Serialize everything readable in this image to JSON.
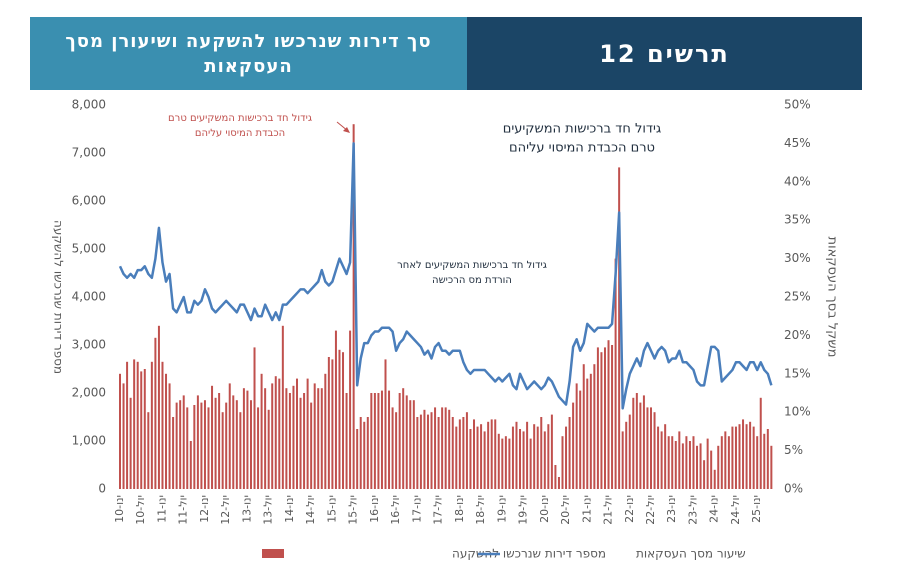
{
  "chart_data": {
    "type": "bar-line",
    "title": "סך דירות שנרכשו להשקעה ושיעורן מסך העסקאות",
    "chart_label": "תרשים 12",
    "y_label": "מספר דירות שנרכשו להשקעה",
    "y2_label": "משקל בסך העסקאות",
    "categories": [
      "ינו-10",
      null,
      null,
      null,
      null,
      null,
      "יול-10",
      null,
      null,
      null,
      null,
      null,
      "ינו-11",
      null,
      null,
      null,
      null,
      null,
      "יול-11",
      null,
      null,
      null,
      null,
      null,
      "ינו-12",
      null,
      null,
      null,
      null,
      null,
      "יול-12",
      null,
      null,
      null,
      null,
      null,
      "ינו-13",
      null,
      null,
      null,
      null,
      null,
      "יול-13",
      null,
      null,
      null,
      null,
      null,
      "ינו-14",
      null,
      null,
      null,
      null,
      null,
      "יול-14",
      null,
      null,
      null,
      null,
      null,
      "ינו-15",
      null,
      null,
      null,
      null,
      null,
      "יול-15",
      null,
      null,
      null,
      null,
      null,
      "ינו-16",
      null,
      null,
      null,
      null,
      null,
      "יול-16",
      null,
      null,
      null,
      null,
      null,
      "ינו-17",
      null,
      null,
      null,
      null,
      null,
      "יול-17",
      null,
      null,
      null,
      null,
      null,
      "ינו-18",
      null,
      null,
      null,
      null,
      null,
      "יול-18",
      null,
      null,
      null,
      null,
      null,
      "ינו-19",
      null,
      null,
      null,
      null,
      null,
      "יול-19",
      null,
      null,
      null,
      null,
      null,
      "ינו-20",
      null,
      null,
      null,
      null,
      null,
      "יול-20",
      null,
      null,
      null,
      null,
      null,
      "ינו-21",
      null,
      null,
      null,
      null,
      null,
      "יול-21",
      null,
      null,
      null,
      null,
      null,
      "ינו-22",
      null,
      null,
      null,
      null,
      null,
      "יול-22",
      null,
      null,
      null,
      null,
      null,
      "ינו-23",
      null,
      null,
      null,
      null,
      null,
      "יול-23",
      null,
      null,
      null,
      null,
      null,
      "ינו-24",
      null,
      null,
      null,
      null,
      null,
      "יול-24",
      null,
      null,
      null,
      null,
      null,
      "ינו-25",
      null,
      null,
      null,
      null
    ],
    "series": [
      {
        "name": "מספר דירות שנרכשו להשקעה",
        "type": "bar",
        "color": "#c0504d",
        "values": [
          2400,
          2200,
          2650,
          1900,
          2700,
          2650,
          2450,
          2500,
          1600,
          2650,
          3150,
          3400,
          2650,
          2400,
          2200,
          1500,
          1800,
          1850,
          1950,
          1700,
          1000,
          1750,
          1950,
          1800,
          1850,
          1700,
          2150,
          1900,
          2000,
          1600,
          1800,
          2200,
          1950,
          1850,
          1600,
          2100,
          2050,
          1850,
          2950,
          1700,
          2400,
          2100,
          1650,
          2200,
          2350,
          2300,
          3400,
          2100,
          2000,
          2150,
          2300,
          1900,
          2000,
          2300,
          1800,
          2200,
          2100,
          2100,
          2400,
          2750,
          2700,
          3300,
          2900,
          2850,
          2000,
          3300,
          7600,
          1250,
          1500,
          1400,
          1500,
          2000,
          2000,
          2000,
          2050,
          2700,
          2050,
          1700,
          1600,
          2000,
          2100,
          1950,
          1850,
          1850,
          1500,
          1550,
          1650,
          1550,
          1600,
          1700,
          1500,
          1700,
          1700,
          1650,
          1500,
          1300,
          1450,
          1500,
          1600,
          1250,
          1450,
          1300,
          1350,
          1200,
          1400,
          1450,
          1450,
          1150,
          1050,
          1100,
          1050,
          1300,
          1400,
          1250,
          1200,
          1400,
          1050,
          1350,
          1300,
          1500,
          1200,
          1350,
          1550,
          500,
          250,
          1100,
          1300,
          1500,
          1800,
          2200,
          2050,
          2600,
          2300,
          2400,
          2600,
          2950,
          2850,
          2950,
          3100,
          3000,
          4800,
          6700,
          1200,
          1400,
          1550,
          1900,
          2000,
          1800,
          1950,
          1700,
          1700,
          1600,
          1300,
          1200,
          1350,
          1100,
          1100,
          1000,
          1200,
          950,
          1100,
          1000,
          1100,
          900,
          950,
          600,
          1050,
          800,
          400,
          900,
          1100,
          1200,
          1100,
          1300,
          1300,
          1350,
          1450,
          1350,
          1400,
          1300,
          1100,
          1900,
          1150,
          1250,
          900
        ]
      },
      {
        "name": "שיעור מסך העסקאות",
        "type": "line",
        "axis": "y2",
        "color": "#4a7ebb",
        "values": [
          29,
          28,
          27.5,
          28,
          27.5,
          28.5,
          28.5,
          29,
          28,
          27.5,
          30,
          34,
          29.5,
          27,
          28,
          23.5,
          23,
          24,
          25,
          23,
          23,
          24.5,
          24,
          24.5,
          26,
          25,
          23.5,
          23,
          23.5,
          24,
          24.5,
          24,
          23.5,
          23,
          24,
          24,
          23,
          22,
          23.5,
          22.5,
          22.5,
          24,
          23,
          22,
          23,
          22,
          24,
          24,
          24.5,
          25,
          25.5,
          26,
          26,
          25.5,
          26,
          26.5,
          27,
          28.5,
          27,
          26.5,
          27,
          28.5,
          30,
          29,
          28,
          29.5,
          45,
          13.5,
          17,
          19,
          19,
          20,
          20.5,
          20.5,
          21,
          21,
          21,
          20.5,
          18,
          19,
          19.5,
          20.5,
          20,
          19.5,
          19,
          18.5,
          17.5,
          18,
          17,
          18.5,
          19,
          18,
          18,
          17.5,
          18,
          18,
          18,
          16.5,
          15.5,
          15,
          15.5,
          15.5,
          15.5,
          15.5,
          15,
          14.5,
          14,
          14.5,
          14,
          14.5,
          15,
          13.5,
          13,
          15,
          14,
          13,
          13.5,
          14,
          13.5,
          13,
          13.5,
          14.5,
          14,
          13,
          12,
          11.5,
          11,
          14,
          18.5,
          19.5,
          18,
          19,
          21.5,
          21,
          20.5,
          21,
          21,
          21,
          21,
          21.5,
          28,
          36,
          10.5,
          13,
          15,
          16,
          17,
          16,
          18,
          19,
          18,
          17,
          18,
          18.5,
          18,
          16.5,
          17,
          17,
          18,
          16.5,
          16.5,
          16,
          15.5,
          14,
          13.5,
          13.5,
          16,
          18.5,
          18.5,
          18,
          14,
          14.5,
          15,
          15.5,
          16.5,
          16.5,
          16,
          15.5,
          16.5,
          16.5,
          15.5,
          16.5,
          15.5,
          15,
          13.5
        ]
      }
    ],
    "ylim": [
      0,
      8000
    ],
    "yticks": [
      0,
      {
        "value": 1000,
        "label": "1,000"
      },
      {
        "value": 2000,
        "label": "2,000"
      },
      {
        "value": 3000,
        "label": "3,000"
      },
      {
        "value": 4000,
        "label": "4,000"
      },
      {
        "value": 5000,
        "label": "5,000"
      },
      {
        "value": 6000,
        "label": "6,000"
      },
      {
        "value": 7000,
        "label": "7,000"
      },
      {
        "value": 8000,
        "label": "8,000"
      }
    ],
    "y2lim": [
      0,
      50
    ],
    "y2ticks": [
      {
        "value": 0,
        "label": "0%"
      },
      {
        "value": 5,
        "label": "5%"
      },
      {
        "value": 10,
        "label": "10%"
      },
      {
        "value": 15,
        "label": "15%"
      },
      {
        "value": 20,
        "label": "20%"
      },
      {
        "value": 25,
        "label": "25%"
      },
      {
        "value": 30,
        "label": "30%"
      },
      {
        "value": 35,
        "label": "35%"
      },
      {
        "value": 40,
        "label": "40%"
      },
      {
        "value": 45,
        "label": "45%"
      },
      {
        "value": 50,
        "label": "50%"
      }
    ],
    "annotations": [
      [
        "גידול חד ברכישות המשקיעים טרם",
        "הכבדת המיסוי עליהם"
      ],
      [
        "גידול חד ברכישות המשקיעים",
        "טרם הכבדת המיסוי עליהם"
      ],
      [
        "גידול חד ברכישות המשקיעים לאחר",
        "הורדת מס הרכישה"
      ]
    ]
  }
}
